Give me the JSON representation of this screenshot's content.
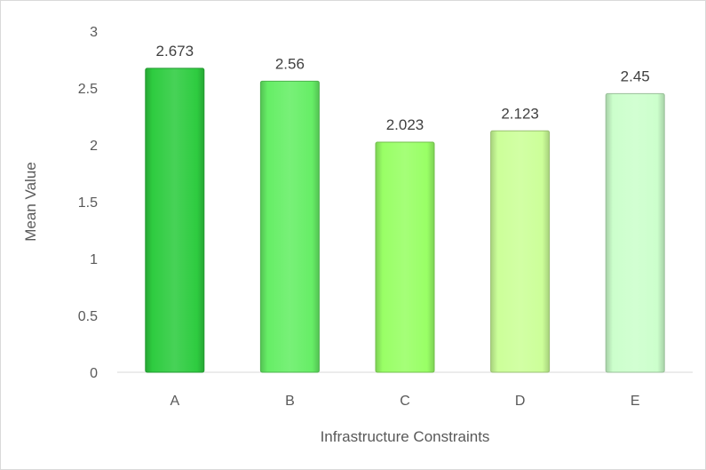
{
  "chart_data": {
    "type": "bar",
    "title": "",
    "xlabel": "Infrastructure Constraints",
    "ylabel": "Mean Value",
    "categories": [
      "A",
      "B",
      "C",
      "D",
      "E"
    ],
    "values": [
      2.673,
      2.56,
      2.023,
      2.123,
      2.45
    ],
    "value_labels": [
      "2.673",
      "2.56",
      "2.023",
      "2.123",
      "2.45"
    ],
    "ylim": [
      0,
      3
    ],
    "yticks": [
      0,
      0.5,
      1,
      1.5,
      2,
      2.5,
      3
    ],
    "ytick_labels": [
      "0",
      "0.5",
      "1",
      "1.5",
      "2",
      "2.5",
      "3"
    ],
    "grid": false,
    "legend": "none",
    "bar_colors": [
      "#2ecc40",
      "#66ee66",
      "#99ff66",
      "#ccff99",
      "#ccffcc"
    ]
  }
}
